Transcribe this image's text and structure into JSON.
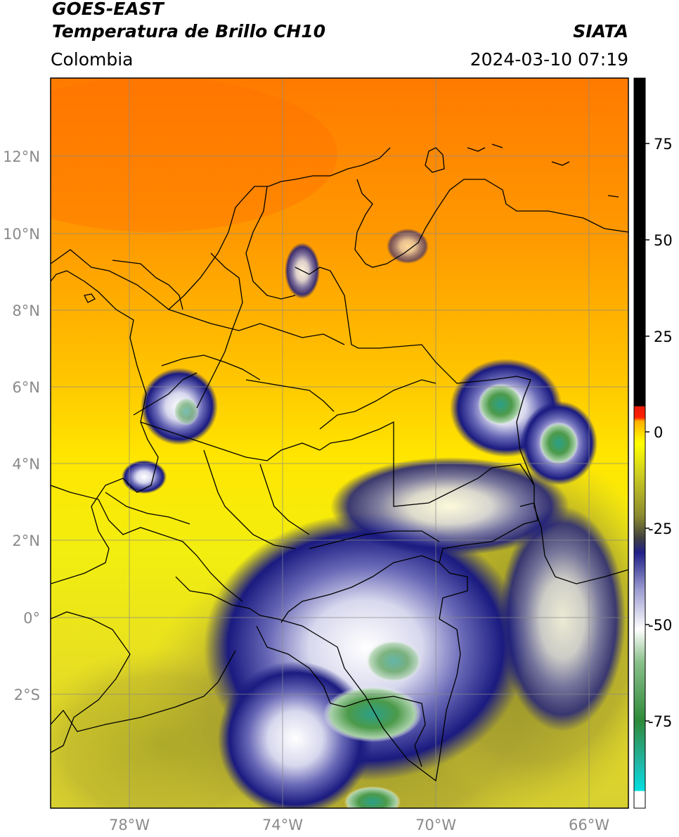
{
  "header": {
    "satellite": "GOES-EAST",
    "product": "Temperatura de Brillo CH10",
    "region": "Colombia",
    "organization": "SIATA",
    "datetime": "2024-03-10 07:19"
  },
  "map": {
    "lat_ticks": [
      "12°N",
      "10°N",
      "8°N",
      "6°N",
      "4°N",
      "2°N",
      "0°",
      "2°S"
    ],
    "lon_ticks": [
      "78°W",
      "74°W",
      "70°W",
      "66°W"
    ]
  },
  "colorbar": {
    "ticks": [
      "75",
      "50",
      "25",
      "0",
      "-25",
      "-50",
      "-75"
    ],
    "colors": {
      "hot": "#000000",
      "red": "#e81a0a",
      "orange": "#ff8a00",
      "yellow": "#ffee00",
      "olive": "#9a9a2a",
      "navy": "#1a1a80",
      "white": "#ffffff",
      "green": "#2e8a3a",
      "cyan": "#00d8d8"
    }
  },
  "icons": {
    "map_image": "brightness-temperature-map"
  }
}
